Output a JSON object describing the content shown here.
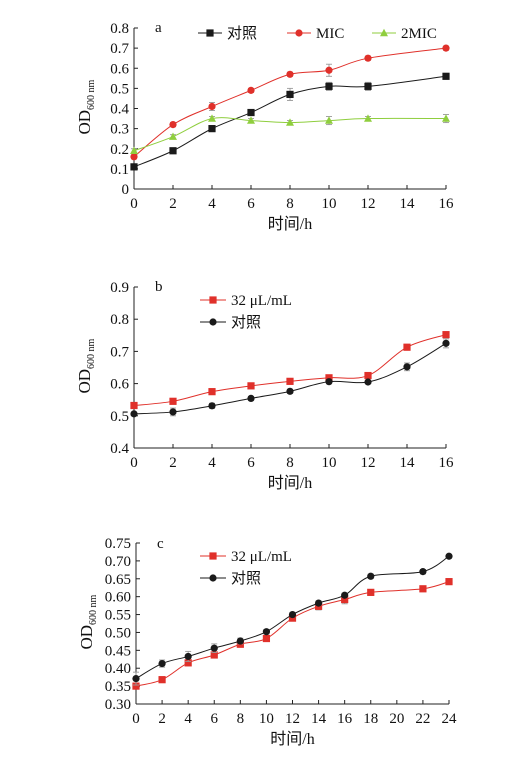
{
  "chart_data": [
    {
      "type": "line",
      "panel_label": "a",
      "xlabel": "时间/h",
      "ylabel": "OD",
      "ylabel_sub": "600 nm",
      "xlim": [
        0,
        16
      ],
      "ylim": [
        0,
        0.8
      ],
      "xticks": [
        0,
        2,
        4,
        6,
        8,
        10,
        12,
        14,
        16
      ],
      "yticks": [
        "0",
        "0.1",
        "0.2",
        "0.3",
        "0.4",
        "0.5",
        "0.6",
        "0.7",
        "0.8"
      ],
      "legend_position": "top",
      "grid": false,
      "series": [
        {
          "name": "对照",
          "color": "#1a1a1a",
          "marker": "square",
          "x": [
            0,
            2,
            4,
            6,
            8,
            10,
            12,
            16
          ],
          "y": [
            0.11,
            0.19,
            0.3,
            0.38,
            0.47,
            0.51,
            0.51,
            0.56
          ],
          "err": [
            0.01,
            0.01,
            0.01,
            0.01,
            0.03,
            0.02,
            0.02,
            0.01
          ]
        },
        {
          "name": "MIC",
          "color": "#e0302a",
          "marker": "circle",
          "x": [
            0,
            2,
            4,
            6,
            8,
            10,
            12,
            16
          ],
          "y": [
            0.16,
            0.32,
            0.41,
            0.49,
            0.57,
            0.59,
            0.65,
            0.7
          ],
          "err": [
            0.01,
            0.01,
            0.02,
            0.01,
            0.01,
            0.03,
            0.01,
            0.01
          ]
        },
        {
          "name": "2MIC",
          "color": "#8fce3e",
          "marker": "triangle",
          "x": [
            0,
            2,
            4,
            6,
            8,
            10,
            12,
            16
          ],
          "y": [
            0.19,
            0.26,
            0.35,
            0.34,
            0.33,
            0.34,
            0.35,
            0.35
          ],
          "err": [
            0.01,
            0.01,
            0.01,
            0.01,
            0.01,
            0.02,
            0.01,
            0.02
          ]
        }
      ]
    },
    {
      "type": "line",
      "panel_label": "b",
      "xlabel": "时间/h",
      "ylabel": "OD",
      "ylabel_sub": "600 nm",
      "xlim": [
        0,
        16
      ],
      "ylim": [
        0.4,
        0.9
      ],
      "xticks": [
        0,
        2,
        4,
        6,
        8,
        10,
        12,
        14,
        16
      ],
      "yticks": [
        "0.4",
        "0.5",
        "0.6",
        "0.7",
        "0.8",
        "0.9"
      ],
      "legend_position": "top-left",
      "grid": false,
      "series": [
        {
          "name": "32 μL/mL",
          "color": "#e0302a",
          "marker": "square",
          "x": [
            0,
            2,
            4,
            6,
            8,
            10,
            12,
            14,
            16
          ],
          "y": [
            0.532,
            0.545,
            0.575,
            0.593,
            0.607,
            0.618,
            0.625,
            0.713,
            0.752
          ],
          "err": [
            0.005,
            0.005,
            0.005,
            0.005,
            0.006,
            0.005,
            0.005,
            0.006,
            0.008
          ]
        },
        {
          "name": "对照",
          "color": "#1a1a1a",
          "marker": "circle",
          "x": [
            0,
            2,
            4,
            6,
            8,
            10,
            12,
            14,
            16
          ],
          "y": [
            0.506,
            0.512,
            0.531,
            0.554,
            0.576,
            0.606,
            0.605,
            0.652,
            0.725
          ],
          "err": [
            0.006,
            0.012,
            0.008,
            0.006,
            0.006,
            0.005,
            0.005,
            0.012,
            0.014
          ]
        }
      ]
    },
    {
      "type": "line",
      "panel_label": "c",
      "xlabel": "时间/h",
      "ylabel": "OD",
      "ylabel_sub": "600 nm",
      "xlim": [
        0,
        24
      ],
      "ylim": [
        0.3,
        0.75
      ],
      "xticks": [
        0,
        2,
        4,
        6,
        8,
        10,
        12,
        14,
        16,
        18,
        20,
        22,
        24
      ],
      "yticks": [
        "0.30",
        "0.35",
        "0.40",
        "0.45",
        "0.50",
        "0.55",
        "0.60",
        "0.65",
        "0.70",
        "0.75"
      ],
      "legend_position": "top-left",
      "grid": false,
      "series": [
        {
          "name": "32 μL/mL",
          "color": "#e0302a",
          "marker": "square",
          "x": [
            0,
            2,
            4,
            6,
            8,
            10,
            12,
            14,
            16,
            18,
            22,
            24
          ],
          "y": [
            0.35,
            0.368,
            0.415,
            0.437,
            0.467,
            0.483,
            0.54,
            0.573,
            0.592,
            0.612,
            0.622,
            0.642
          ],
          "err": [
            0.006,
            0.006,
            0.006,
            0.006,
            0.006,
            0.008,
            0.008,
            0.01,
            0.012,
            0.005,
            0.005,
            0.005
          ]
        },
        {
          "name": "对照",
          "color": "#1a1a1a",
          "marker": "circle",
          "x": [
            0,
            2,
            4,
            6,
            8,
            10,
            12,
            14,
            16,
            18,
            22,
            24
          ],
          "y": [
            0.371,
            0.413,
            0.433,
            0.456,
            0.476,
            0.502,
            0.55,
            0.582,
            0.604,
            0.657,
            0.67,
            0.713
          ],
          "err": [
            0.018,
            0.01,
            0.014,
            0.012,
            0.008,
            0.006,
            0.006,
            0.006,
            0.006,
            0.006,
            0.006,
            0.005
          ]
        }
      ]
    }
  ]
}
